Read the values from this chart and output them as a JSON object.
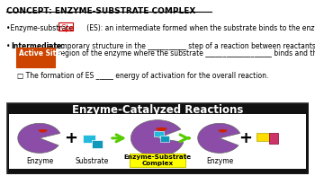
{
  "bg_color": "#ffffff",
  "title_text": "CONCEPT: ENZYME-SUBSTRATE COMPLEX",
  "bullet1_pre": "•Enzyme-substrate ",
  "bullet1_red": "Cpx",
  "bullet1_post": "      (ES): an intermediate formed when the substrate binds to the enzyme's _______________.",
  "bullet2_bold": "Intermediate:",
  "bullet2_rest": " a temporary structure in the ___________ step of a reaction between reactants and the product.",
  "active_site_label": "Active Site:",
  "active_site_rest": " region of the enzyme where the substrate ___________________ binds and the reaction occurs.",
  "bullet4": "□ The formation of ES _____ energy of activation for the overall reaction.",
  "diagram_title": "Enzyme-Catalyzed Reactions",
  "diagram_bg": "#111111",
  "diagram_inner_bg": "#ffffff",
  "labels": [
    "Enzyme",
    "Substrate",
    "Enzyme-Substrate\nComplex",
    "Enzyme"
  ],
  "label_highlight_color": "#ffff00",
  "enzyme_color": "#8b4da8",
  "substrate_color": "#00aacc",
  "arrow_color": "#55cc00",
  "product1_color": "#ffdd00",
  "product2_color": "#cc3366",
  "active_site_bg": "#cc4400",
  "cpx_box_color": "#cc0000"
}
